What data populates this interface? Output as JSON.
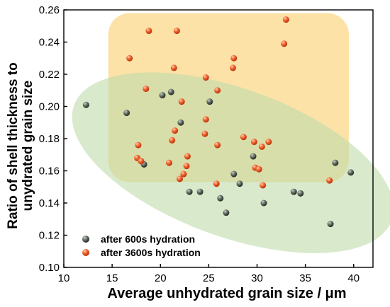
{
  "chart_data": {
    "type": "scatter",
    "title": "",
    "xlabel": "Average unhydrated grain size / μm",
    "ylabel_lines": [
      "Ratio of shell thickness to",
      "unydrated grain size"
    ],
    "xlim": [
      10,
      42
    ],
    "ylim": [
      0.1,
      0.26
    ],
    "xticks": [
      10,
      15,
      20,
      25,
      30,
      35,
      40
    ],
    "xtick_labels": [
      "10",
      "15",
      "20",
      "25",
      "30",
      "35",
      "40"
    ],
    "yticks": [
      0.1,
      0.12,
      0.14,
      0.16,
      0.18,
      0.2,
      0.22,
      0.24,
      0.26
    ],
    "ytick_labels": [
      "0.10",
      "0.12",
      "0.14",
      "0.16",
      "0.18",
      "0.20",
      "0.22",
      "0.24",
      "0.26"
    ],
    "grid": false,
    "legend_position": "bottom-left",
    "regions": [
      {
        "shape": "rounded-rect",
        "color": "#fbd88a",
        "x_range": [
          14.6,
          39.5
        ],
        "y_range": [
          0.153,
          0.258
        ]
      },
      {
        "shape": "ellipse",
        "color": "#bfdcaa",
        "center": [
          27.5,
          0.165
        ],
        "semi_axes": [
          17.5,
          0.046
        ],
        "angle_deg": -20
      }
    ],
    "series": [
      {
        "name": "after 600s hydration",
        "color": "#555f55",
        "points": [
          [
            12.3,
            0.201
          ],
          [
            16.5,
            0.196
          ],
          [
            18.3,
            0.164
          ],
          [
            20.2,
            0.207
          ],
          [
            21.1,
            0.209
          ],
          [
            22.1,
            0.19
          ],
          [
            23.0,
            0.147
          ],
          [
            24.1,
            0.147
          ],
          [
            25.1,
            0.203
          ],
          [
            26.2,
            0.143
          ],
          [
            26.8,
            0.134
          ],
          [
            27.6,
            0.158
          ],
          [
            28.2,
            0.152
          ],
          [
            29.6,
            0.169
          ],
          [
            30.7,
            0.14
          ],
          [
            33.8,
            0.147
          ],
          [
            34.5,
            0.146
          ],
          [
            37.6,
            0.127
          ],
          [
            38.1,
            0.165
          ],
          [
            39.7,
            0.159
          ]
        ]
      },
      {
        "name": "after 3600s hydration",
        "color": "#f0622c",
        "points": [
          [
            16.8,
            0.23
          ],
          [
            17.6,
            0.168
          ],
          [
            17.7,
            0.176
          ],
          [
            18.0,
            0.166
          ],
          [
            18.5,
            0.211
          ],
          [
            18.8,
            0.247
          ],
          [
            20.9,
            0.165
          ],
          [
            21.2,
            0.179
          ],
          [
            21.5,
            0.185
          ],
          [
            21.4,
            0.224
          ],
          [
            21.7,
            0.247
          ],
          [
            22.0,
            0.155
          ],
          [
            22.4,
            0.158
          ],
          [
            22.2,
            0.203
          ],
          [
            22.7,
            0.163
          ],
          [
            22.8,
            0.169
          ],
          [
            24.7,
            0.218
          ],
          [
            24.7,
            0.192
          ],
          [
            24.6,
            0.183
          ],
          [
            25.9,
            0.176
          ],
          [
            25.9,
            0.21
          ],
          [
            25.8,
            0.152
          ],
          [
            27.5,
            0.224
          ],
          [
            27.6,
            0.23
          ],
          [
            28.6,
            0.181
          ],
          [
            29.7,
            0.178
          ],
          [
            29.8,
            0.162
          ],
          [
            30.2,
            0.161
          ],
          [
            30.5,
            0.175
          ],
          [
            30.6,
            0.151
          ],
          [
            31.2,
            0.178
          ],
          [
            32.8,
            0.239
          ],
          [
            33.0,
            0.254
          ],
          [
            37.5,
            0.154
          ]
        ]
      }
    ]
  }
}
